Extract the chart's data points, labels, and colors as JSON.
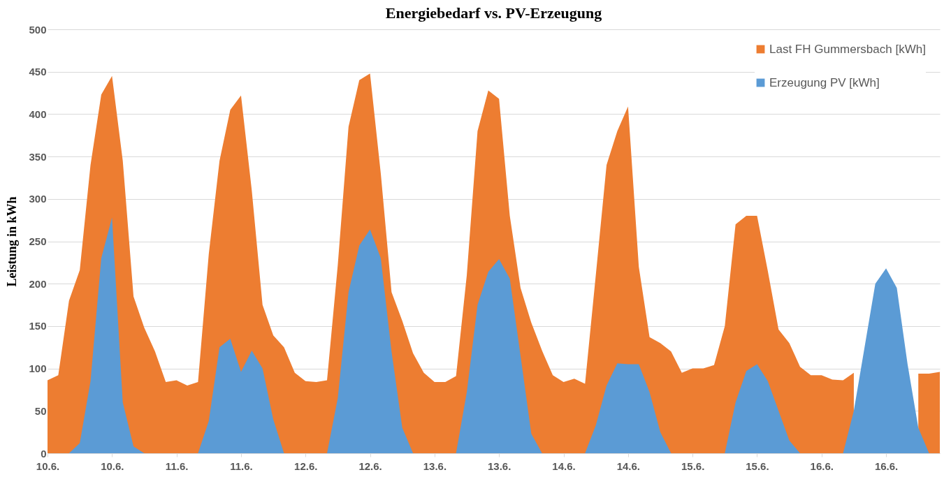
{
  "chart_data": {
    "type": "area",
    "title": "Energiebedarf vs. PV-Erzeugung",
    "ylabel": "Leistung in kWh",
    "categories": [
      "10.6.",
      null,
      null,
      null,
      null,
      null,
      "10.6.",
      null,
      null,
      null,
      null,
      null,
      "11.6.",
      null,
      null,
      null,
      null,
      null,
      "11.6.",
      null,
      null,
      null,
      null,
      null,
      "12.6.",
      null,
      null,
      null,
      null,
      null,
      "12.6.",
      null,
      null,
      null,
      null,
      null,
      "13.6.",
      null,
      null,
      null,
      null,
      null,
      "13.6.",
      null,
      null,
      null,
      null,
      null,
      "14.6.",
      null,
      null,
      null,
      null,
      null,
      "14.6.",
      null,
      null,
      null,
      null,
      null,
      "15.6.",
      null,
      null,
      null,
      null,
      null,
      "15.6.",
      null,
      null,
      null,
      null,
      null,
      "16.6.",
      null,
      null,
      null,
      null,
      null,
      "16.6.",
      null,
      null,
      null,
      null,
      null
    ],
    "series": [
      {
        "name": "Last FH Gummersbach [kWh]",
        "color": "#ed7d31",
        "values": [
          86,
          92,
          180,
          216,
          340,
          423,
          445,
          345,
          185,
          148,
          120,
          84,
          86,
          80,
          84,
          235,
          345,
          405,
          422,
          310,
          175,
          139,
          125,
          95,
          85,
          84,
          86,
          222,
          385,
          440,
          448,
          330,
          190,
          156,
          118,
          95,
          84,
          84,
          91,
          210,
          380,
          428,
          418,
          280,
          195,
          154,
          121,
          92,
          84,
          88,
          82,
          210,
          340,
          380,
          409,
          220,
          137,
          130,
          120,
          95,
          100,
          100,
          104,
          150,
          270,
          280,
          280,
          215,
          146,
          130,
          102,
          92,
          92,
          87,
          86,
          95,
          null,
          null,
          null,
          null,
          null,
          94,
          94,
          96
        ]
      },
      {
        "name": "Erzeugung PV [kWh]",
        "color": "#5b9bd5",
        "values": [
          0,
          0,
          0,
          12,
          85,
          230,
          278,
          60,
          8,
          0,
          0,
          0,
          0,
          0,
          0,
          38,
          125,
          135,
          96,
          121,
          100,
          40,
          0,
          0,
          0,
          0,
          0,
          65,
          190,
          245,
          264,
          230,
          120,
          30,
          0,
          0,
          0,
          0,
          0,
          72,
          175,
          214,
          229,
          206,
          115,
          23,
          0,
          0,
          0,
          0,
          0,
          33,
          80,
          106,
          105,
          105,
          72,
          25,
          0,
          0,
          0,
          0,
          0,
          0,
          60,
          97,
          105,
          85,
          50,
          15,
          0,
          0,
          0,
          0,
          0,
          50,
          125,
          200,
          218,
          195,
          105,
          30,
          0,
          0
        ]
      }
    ],
    "ylim": [
      0,
      500
    ],
    "yticks": [
      0,
      50,
      100,
      150,
      200,
      250,
      300,
      350,
      400,
      450,
      500
    ],
    "grid": "y",
    "legend": "top right"
  }
}
